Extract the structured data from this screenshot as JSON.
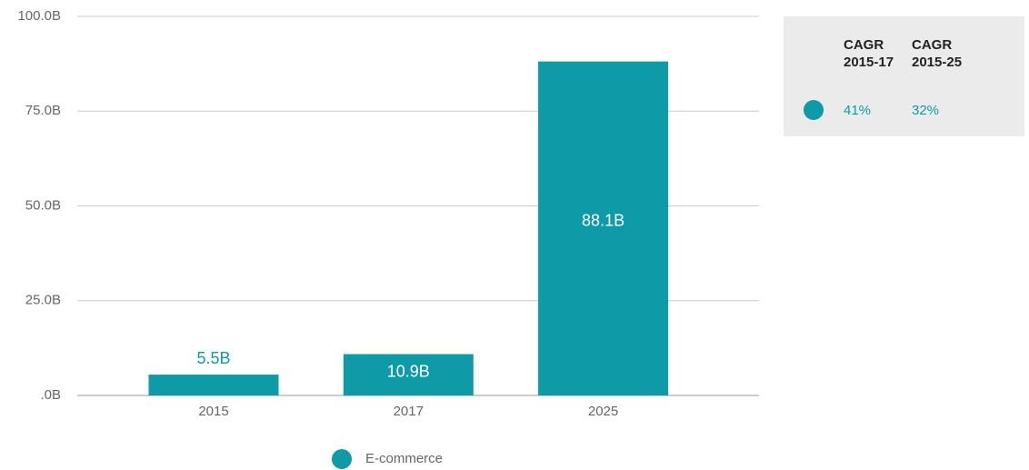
{
  "chart_data": {
    "type": "bar",
    "categories": [
      "2015",
      "2017",
      "2025"
    ],
    "series": [
      {
        "name": "E-commerce",
        "color": "#0e9aa7",
        "values": [
          5.5,
          10.9,
          88.1
        ],
        "value_labels": [
          "5.5B",
          "10.9B",
          "88.1B"
        ]
      }
    ],
    "ylim": [
      0,
      100
    ],
    "yticks": [
      {
        "value": 0,
        "label": ".0B"
      },
      {
        "value": 25,
        "label": "25.0B"
      },
      {
        "value": 50,
        "label": "50.0B"
      },
      {
        "value": 75,
        "label": "75.0B"
      },
      {
        "value": 100,
        "label": "100.0B"
      }
    ],
    "grid": true,
    "legend": "bottom",
    "table": {
      "headers": [
        "CAGR 2015-17",
        "CAGR 2015-25"
      ],
      "rows": [
        [
          "41%",
          "32%"
        ]
      ]
    }
  }
}
